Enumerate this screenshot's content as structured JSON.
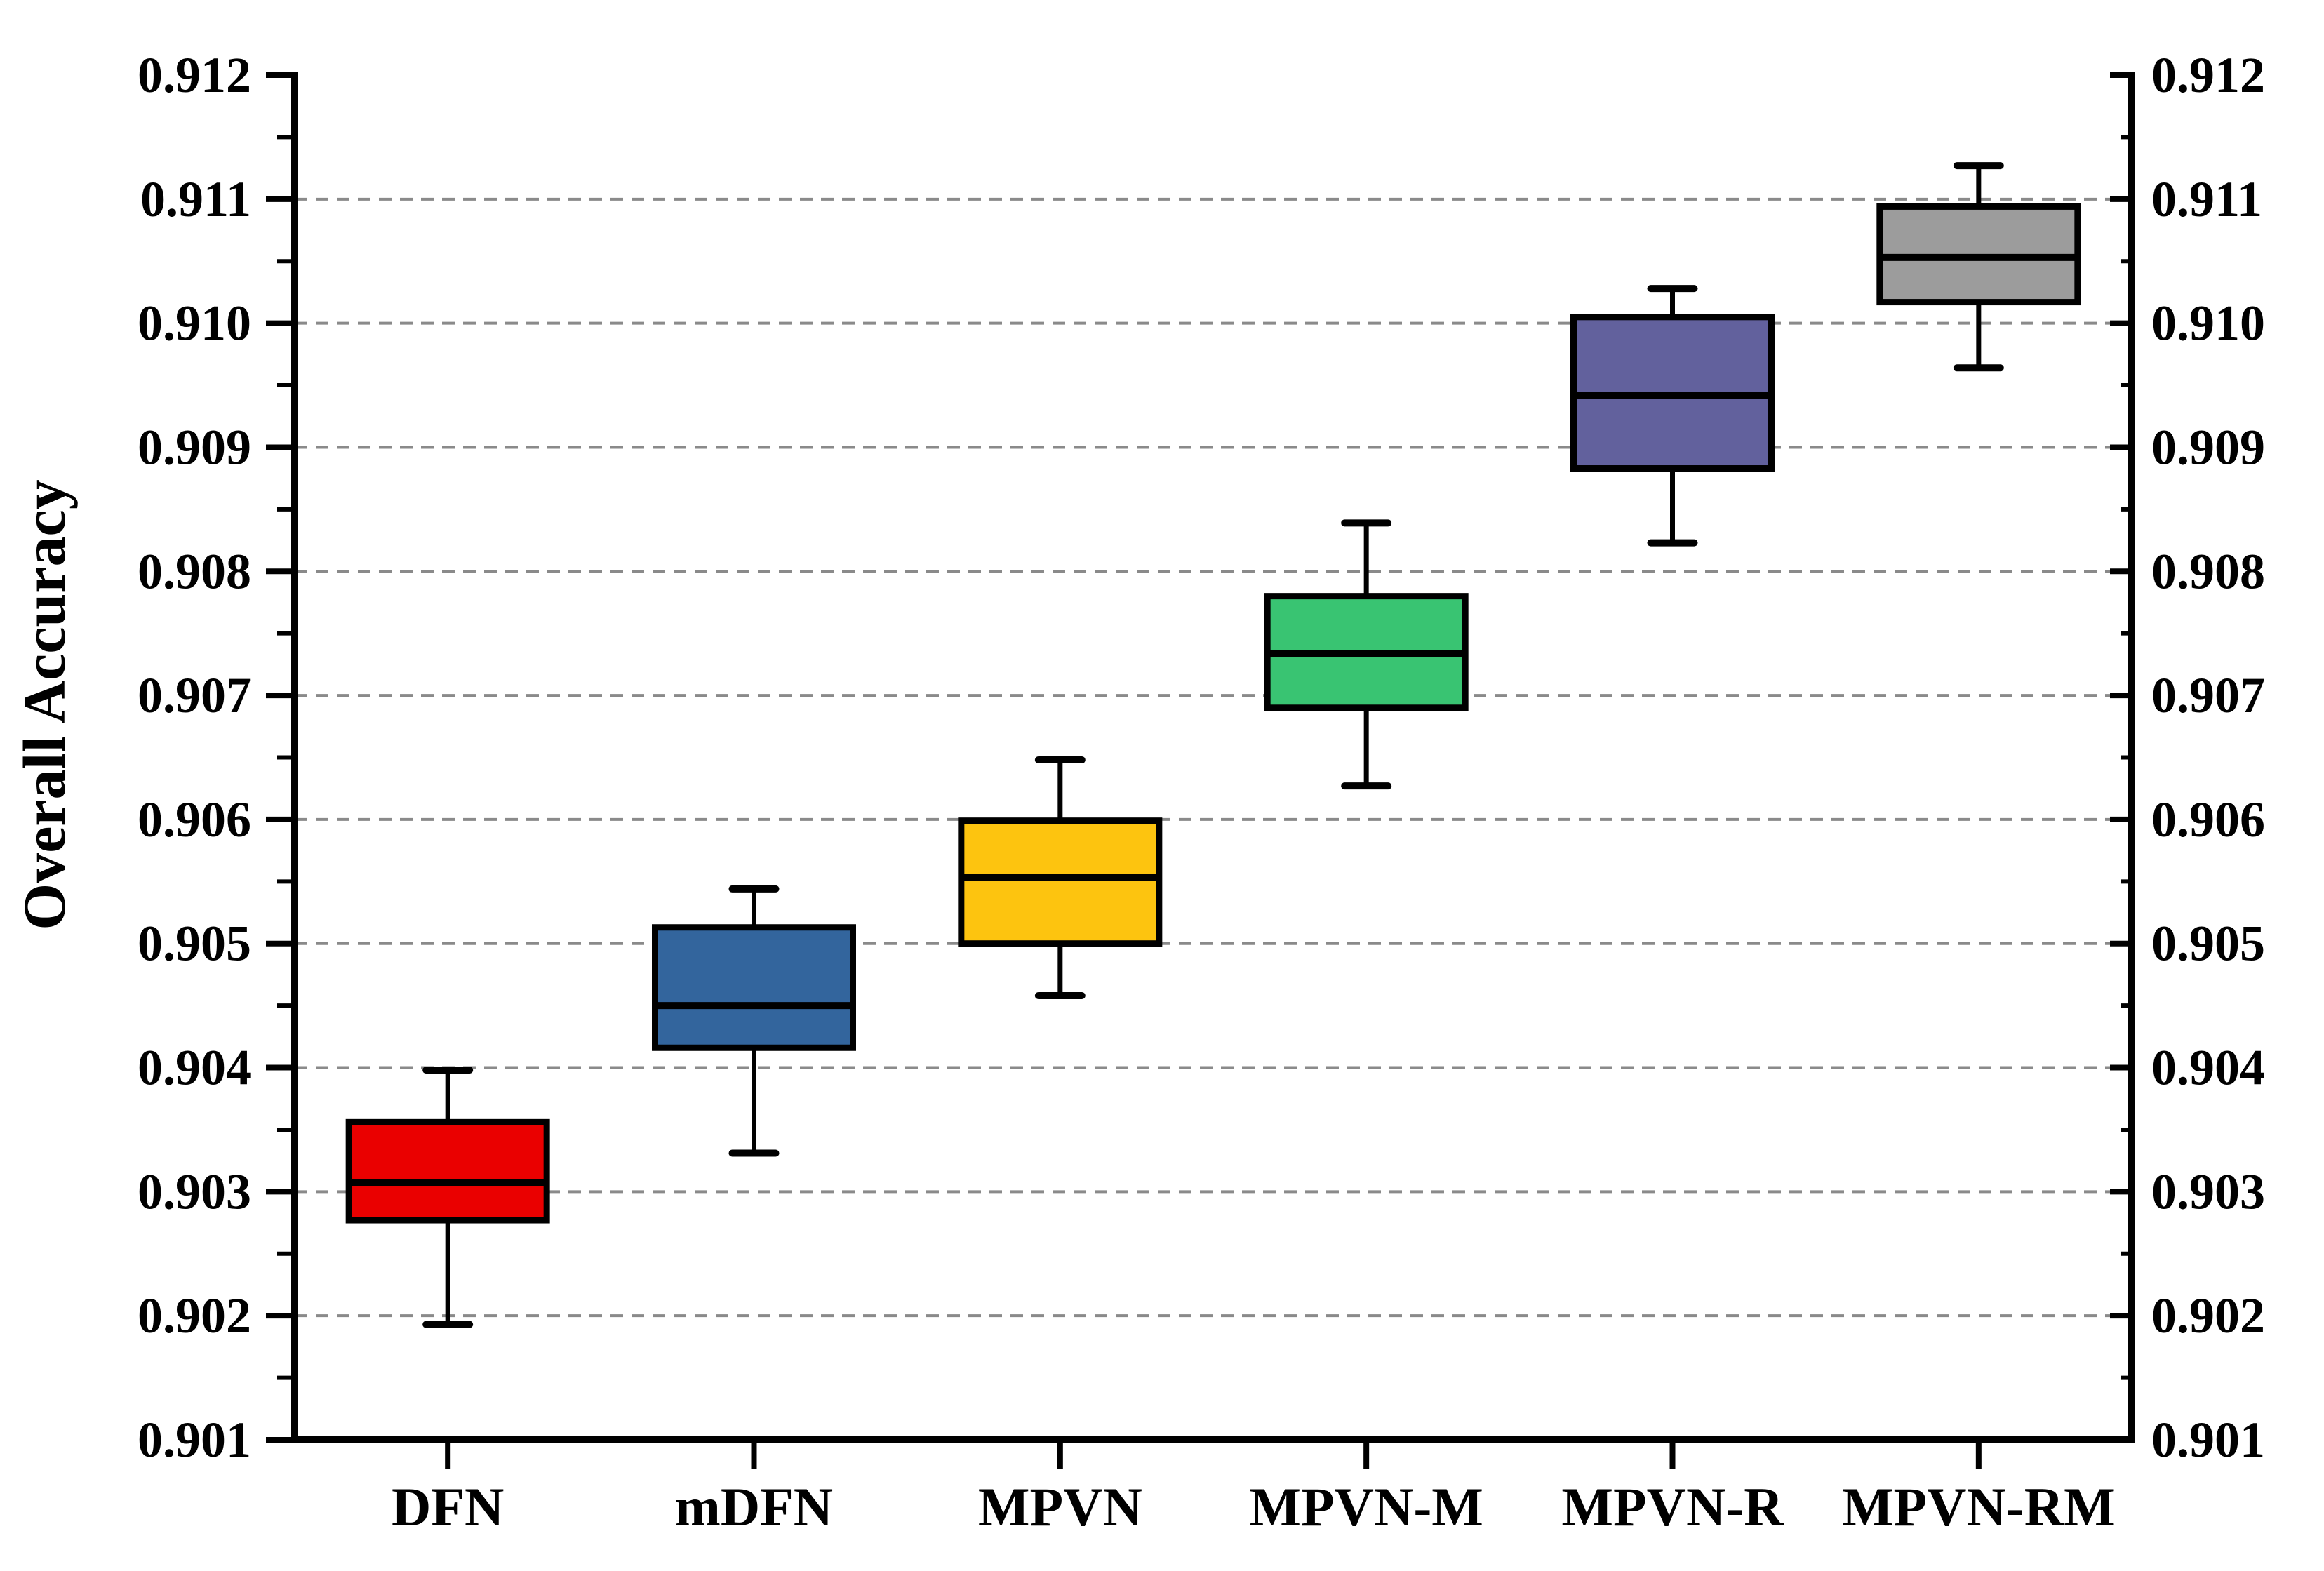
{
  "figure": {
    "background": "#ffffff",
    "axis_color": "#000000",
    "grid_color": "#8a8a8a",
    "grid_style": "dashed"
  },
  "chart_data": {
    "type": "boxplot",
    "title": "",
    "xlabel": "",
    "ylabel": "Overall Accuracy",
    "categories": [
      "DFN",
      "mDFN",
      "MPVN",
      "MPVN-M",
      "MPVN-R",
      "MPVN-RM"
    ],
    "ylim": [
      0.901,
      0.912
    ],
    "ytick_step": 0.001,
    "minor_tick_step": 0.0005,
    "ytick_labels": [
      "0.901",
      "0.902",
      "0.903",
      "0.904",
      "0.905",
      "0.906",
      "0.907",
      "0.908",
      "0.909",
      "0.910",
      "0.911",
      "0.912"
    ],
    "right_axis_mirrors_left": true,
    "grid": "horizontal dashed lines at 0.902 through 0.911",
    "legend_position": "none",
    "series": [
      {
        "name": "DFN",
        "color": "#ea0000",
        "whisker_low": 0.90193,
        "q1": 0.90277,
        "median": 0.90307,
        "q3": 0.90356,
        "whisker_high": 0.90398
      },
      {
        "name": "mDFN",
        "color": "#33659d",
        "whisker_low": 0.90331,
        "q1": 0.90416,
        "median": 0.9045,
        "q3": 0.90513,
        "whisker_high": 0.90544
      },
      {
        "name": "MPVN",
        "color": "#fdc40f",
        "whisker_low": 0.90458,
        "q1": 0.905,
        "median": 0.90553,
        "q3": 0.90599,
        "whisker_high": 0.90648
      },
      {
        "name": "MPVN-M",
        "color": "#39c472",
        "whisker_low": 0.90627,
        "q1": 0.9069,
        "median": 0.90734,
        "q3": 0.9078,
        "whisker_high": 0.90839
      },
      {
        "name": "MPVN-R",
        "color": "#62619d",
        "whisker_low": 0.90823,
        "q1": 0.90883,
        "median": 0.90942,
        "q3": 0.91005,
        "whisker_high": 0.91028
      },
      {
        "name": "MPVN-RM",
        "color": "#9c9c9c",
        "whisker_low": 0.90964,
        "q1": 0.91017,
        "median": 0.91053,
        "q3": 0.91094,
        "whisker_high": 0.91127
      }
    ]
  }
}
